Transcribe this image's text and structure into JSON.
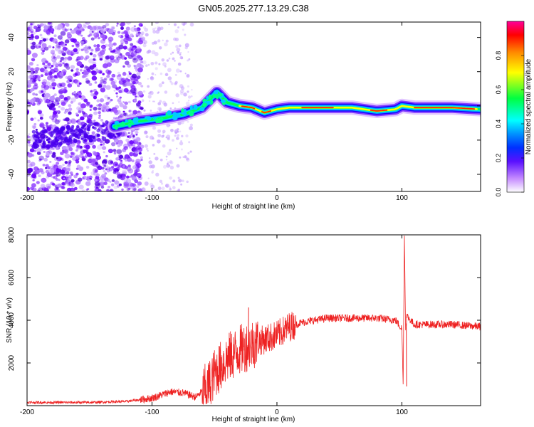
{
  "title": "GN05.2025.277.13.29.C38",
  "chart_data": [
    {
      "type": "heatmap",
      "xlabel": "Height of straight line (km)",
      "ylabel": "Frequency (Hz)",
      "xlim": [
        -200,
        163
      ],
      "ylim": [
        -50,
        49
      ],
      "xticks": [
        -200,
        -100,
        0,
        100
      ],
      "yticks": [
        -40,
        -20,
        0,
        20,
        40
      ],
      "colorbar": {
        "label": "Normalized spectral amplitude",
        "range": [
          0,
          1
        ],
        "ticks": [
          "0.0",
          "0.2",
          "0.4",
          "0.6",
          "0.8"
        ],
        "colors": [
          "#ffffff",
          "#b55cff",
          "#3a00ff",
          "#0088ff",
          "#00ffff",
          "#00ff40",
          "#ffff00",
          "#ff8800",
          "#ff0000",
          "#ff00aa"
        ]
      },
      "ridge": [
        {
          "x": -130,
          "f": -12
        },
        {
          "x": -110,
          "f": -9
        },
        {
          "x": -90,
          "f": -7
        },
        {
          "x": -75,
          "f": -5
        },
        {
          "x": -60,
          "f": -1
        },
        {
          "x": -48,
          "f": 8
        },
        {
          "x": -40,
          "f": 2
        },
        {
          "x": -30,
          "f": 0
        },
        {
          "x": -20,
          "f": -1
        },
        {
          "x": -10,
          "f": -4
        },
        {
          "x": 0,
          "f": -2
        },
        {
          "x": 10,
          "f": -1
        },
        {
          "x": 30,
          "f": -1
        },
        {
          "x": 60,
          "f": -1
        },
        {
          "x": 80,
          "f": -3
        },
        {
          "x": 95,
          "f": -2
        },
        {
          "x": 100,
          "f": 0
        },
        {
          "x": 110,
          "f": -1
        },
        {
          "x": 140,
          "f": -1
        },
        {
          "x": 163,
          "f": -2
        }
      ]
    },
    {
      "type": "line",
      "xlabel": "Height of straight line (km)",
      "ylabel": "SNR (10 * v/v)",
      "xlim": [
        -200,
        163
      ],
      "ylim": [
        0,
        8000
      ],
      "xticks": [
        -200,
        -100,
        0,
        100
      ],
      "yticks": [
        2000,
        4000,
        6000,
        8000
      ],
      "color": "#ee2222",
      "series": [
        {
          "name": "SNR",
          "x": [
            -200,
            -150,
            -120,
            -100,
            -85,
            -75,
            -65,
            -55,
            -50,
            -40,
            -30,
            -20,
            -10,
            0,
            10,
            20,
            30,
            40,
            60,
            80,
            95,
            100,
            101,
            102,
            103,
            104,
            110,
            120,
            140,
            163
          ],
          "values": [
            150,
            150,
            200,
            350,
            650,
            600,
            400,
            900,
            1500,
            2200,
            2600,
            2900,
            3100,
            3300,
            3700,
            3900,
            4000,
            4100,
            4100,
            4100,
            4000,
            3600,
            900,
            8000,
            3500,
            4200,
            3800,
            3800,
            3800,
            3700
          ]
        }
      ],
      "spikes": [
        {
          "x": -23,
          "value": 4600
        },
        {
          "x": 102,
          "value": 8000
        },
        {
          "x": 103.5,
          "value": 900
        }
      ]
    }
  ]
}
